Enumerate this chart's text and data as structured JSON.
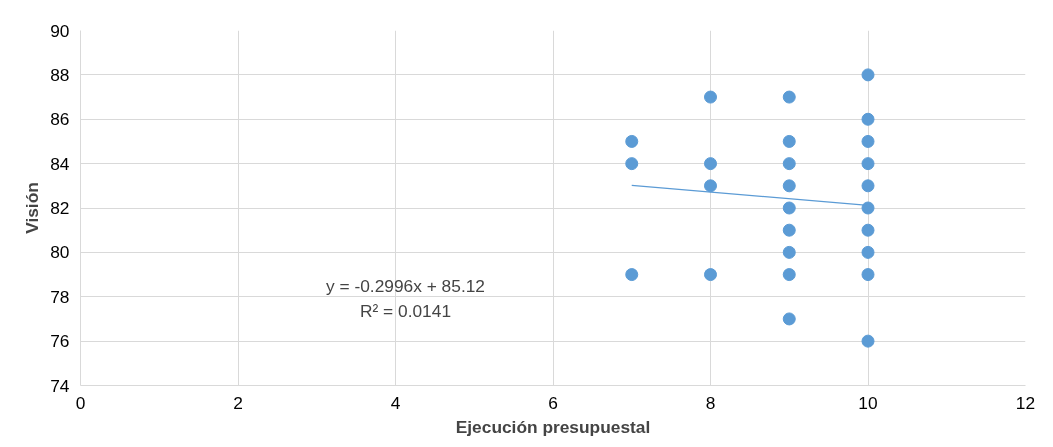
{
  "chart_data": {
    "type": "scatter",
    "xlabel": "Ejecución presupuestal",
    "ylabel": "Visión",
    "series": [
      {
        "color": "#5b9bd5",
        "x": [
          7,
          7,
          7,
          8,
          8,
          8,
          8,
          9,
          9,
          9,
          9,
          9,
          9,
          9,
          9,
          9,
          10,
          10,
          10,
          10,
          10,
          10,
          10,
          10,
          10,
          10
        ],
        "values": [
          85,
          84,
          79,
          87,
          84,
          83,
          79,
          87,
          85,
          84,
          83,
          82,
          81,
          80,
          79,
          77,
          88,
          86,
          85,
          84,
          83,
          82,
          81,
          80,
          79,
          76
        ]
      },
      {
        "type": "line",
        "marker": "none",
        "color": "#5b9bd5",
        "x": [
          7,
          10
        ],
        "values": [
          83.02,
          82.12
        ]
      }
    ],
    "xlim": [
      0,
      12
    ],
    "xticks": [
      0,
      2,
      4,
      6,
      8,
      10,
      12
    ],
    "ylim": [
      74,
      90
    ],
    "yticks": [
      74,
      76,
      78,
      80,
      82,
      84,
      86,
      88,
      90
    ],
    "grid": true,
    "marker": "circle",
    "annotations": [
      "y = -0.2996x + 85.12",
      "R² = 0.0141"
    ]
  }
}
